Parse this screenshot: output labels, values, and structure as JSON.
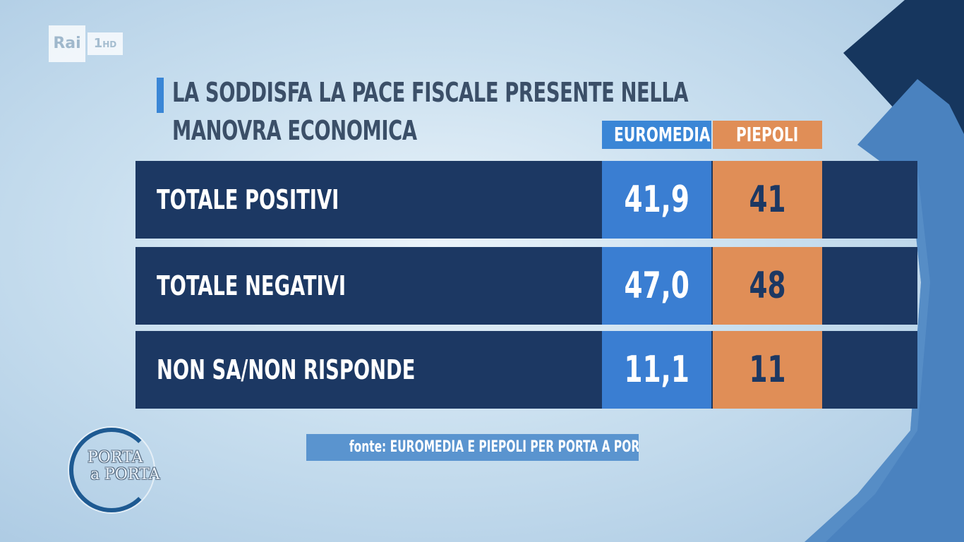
{
  "channel": {
    "logo_text": "Rai",
    "channel_number": "1",
    "channel_suffix": "HD"
  },
  "show": {
    "logo_line1": "PORTA",
    "logo_line2": "a PORTA"
  },
  "chart_data": {
    "type": "table",
    "title": "LA SODDISFA LA PACE FISCALE PRESENTE NELLA MANOVRA ECONOMICA",
    "columns": [
      "EUROMEDIA",
      "PIEPOLI"
    ],
    "rows": [
      {
        "label": "TOTALE POSITIVI",
        "values": [
          "41,9",
          "41"
        ]
      },
      {
        "label": "TOTALE NEGATIVI",
        "values": [
          "47,0",
          "48"
        ]
      },
      {
        "label": "NON SA/NON RISPONDE",
        "values": [
          "11,1",
          "11"
        ]
      }
    ],
    "source": "fonte: EUROMEDIA E PIEPOLI PER PORTA A PORTA"
  },
  "colors": {
    "accent_blue": "#3a86d6",
    "accent_orange": "#e08e57",
    "row_navy": "#1c3863",
    "title_gray": "#3b4f68"
  }
}
